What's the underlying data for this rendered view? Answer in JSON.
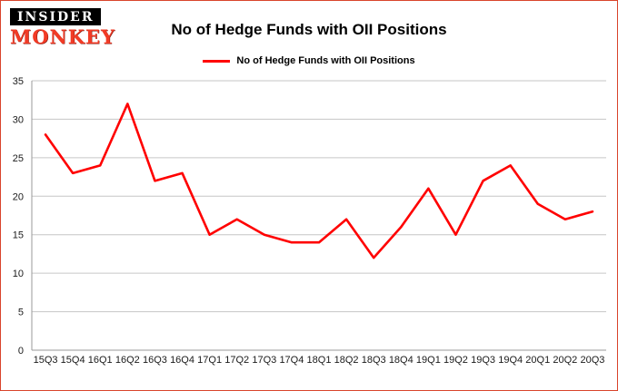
{
  "logo": {
    "line1": "INSIDER",
    "line2": "MONKEY"
  },
  "header": {
    "title": "No of Hedge Funds with OII Positions"
  },
  "legend": {
    "label": "No of Hedge Funds with OII Positions"
  },
  "chart_data": {
    "type": "line",
    "title": "No of Hedge Funds with OII Positions",
    "categories": [
      "15Q3",
      "15Q4",
      "16Q1",
      "16Q2",
      "16Q3",
      "16Q4",
      "17Q1",
      "17Q2",
      "17Q3",
      "17Q4",
      "18Q1",
      "18Q2",
      "18Q3",
      "18Q4",
      "19Q1",
      "19Q2",
      "19Q3",
      "19Q4",
      "20Q1",
      "20Q2",
      "20Q3"
    ],
    "series": [
      {
        "name": "No of Hedge Funds with OII Positions",
        "values": [
          28,
          23,
          24,
          32,
          22,
          23,
          15,
          17,
          15,
          14,
          14,
          17,
          12,
          16,
          21,
          15,
          22,
          24,
          19,
          17,
          18
        ]
      }
    ],
    "xlabel": "",
    "ylabel": "",
    "ylim": [
      0,
      35
    ],
    "yticks": [
      0,
      5,
      10,
      15,
      20,
      25,
      30,
      35
    ],
    "line_color": "#ff0000",
    "grid": true,
    "legend_position": "top"
  }
}
